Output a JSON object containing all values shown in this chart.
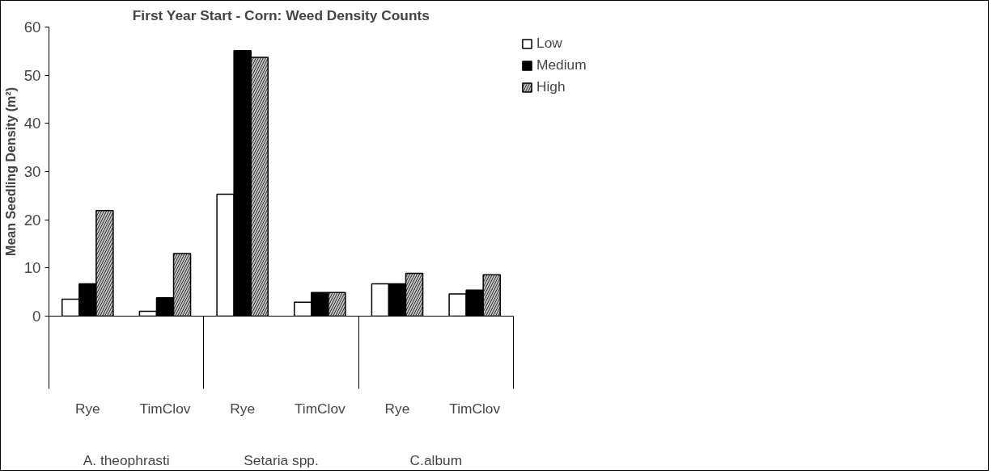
{
  "chart_data": {
    "type": "bar",
    "title": "First Year Start - Corn: Weed Density Counts",
    "ylabel": "Mean Seedling Density (m²)",
    "categories": [
      "Rye",
      "TimClov",
      "Rye",
      "TimClov",
      "Rye",
      "TimClov"
    ],
    "annotations": [
      "A. theophrasti",
      "Setaria spp.",
      "C.album"
    ],
    "series": [
      {
        "name": "Low",
        "color": "#ffffff",
        "values": [
          3.5,
          1.0,
          25.3,
          2.9,
          6.7,
          4.6
        ]
      },
      {
        "name": "Medium",
        "color": "#000000",
        "values": [
          6.7,
          3.8,
          55.1,
          4.9,
          6.7,
          5.4
        ]
      },
      {
        "name": "High",
        "color": "#c0c0c0",
        "values": [
          21.9,
          13.0,
          53.7,
          4.9,
          8.9,
          8.6
        ]
      }
    ],
    "ylim": [
      0,
      60
    ],
    "yticks": [
      0,
      10,
      20,
      30,
      40,
      50,
      60
    ],
    "grid": false,
    "legend": "top right"
  }
}
